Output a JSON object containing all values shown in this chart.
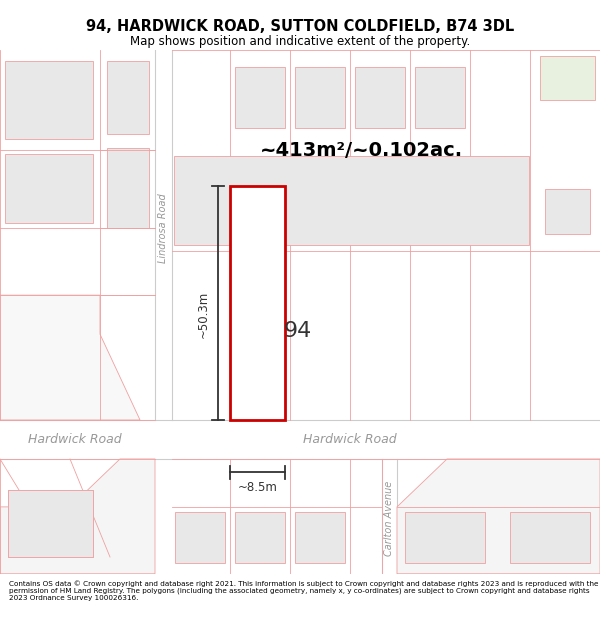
{
  "title": "94, HARDWICK ROAD, SUTTON COLDFIELD, B74 3DL",
  "subtitle": "Map shows position and indicative extent of the property.",
  "footer": "Contains OS data © Crown copyright and database right 2021. This information is subject to Crown copyright and database rights 2023 and is reproduced with the permission of HM Land Registry. The polygons (including the associated geometry, namely x, y co-ordinates) are subject to Crown copyright and database rights 2023 Ordnance Survey 100026316.",
  "area_label": "~413m²/~0.102ac.",
  "width_label": "~8.5m",
  "height_label": "~50.3m",
  "number_label": "94",
  "road_label_left": "Hardwick Road",
  "road_label_right": "Hardwick Road",
  "street_label": "Lindrosa Road",
  "avenue_label": "Carlton Avenue",
  "bg_color": "#ffffff",
  "map_bg": "#ffffff",
  "building_fill": "#e8e8e8",
  "plot_border": "#cc0000",
  "road_border": "#f0a0a0",
  "building_border": "#f0a0a0",
  "dim_line_color": "#333333",
  "road_text_color": "#aaaaaa",
  "green_fill": "#e8f0e0"
}
